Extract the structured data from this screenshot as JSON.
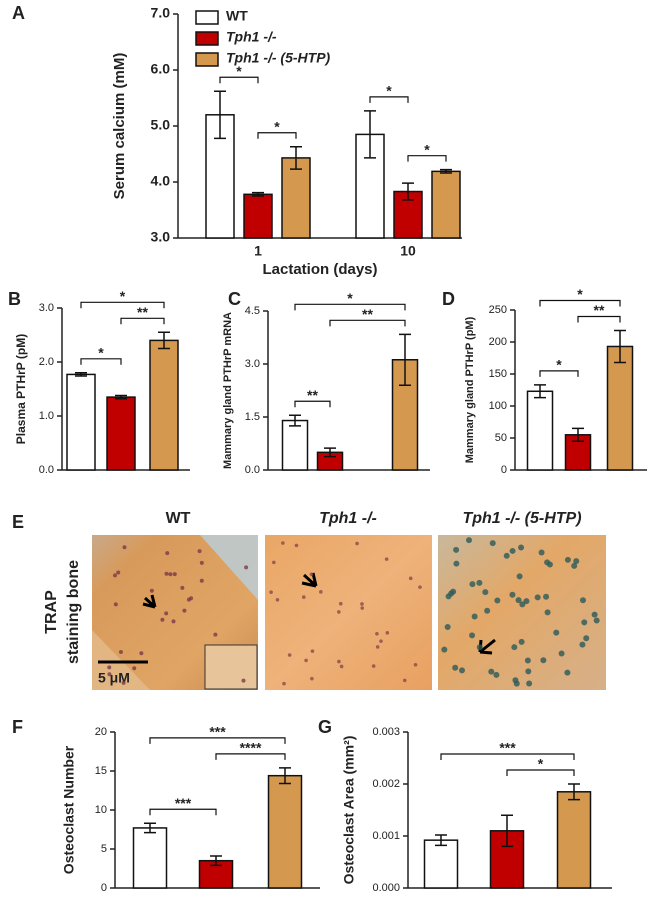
{
  "chart_data": [
    {
      "type": "bar",
      "panel": "A",
      "ylabel": "Serum calcium (mM)",
      "xlabel": "Lactation (days)",
      "categories": [
        "1",
        "10"
      ],
      "series": [
        {
          "name": "WT",
          "color": "#ffffff",
          "values": [
            5.2,
            4.85
          ],
          "errors": [
            0.42,
            0.42
          ]
        },
        {
          "name": "Tph1 -/-",
          "color": "#c00000",
          "values": [
            3.78,
            3.83
          ],
          "errors": [
            0.03,
            0.15
          ]
        },
        {
          "name": "Tph1 -/- (5-HTP)",
          "color": "#d4994f",
          "values": [
            4.43,
            4.19
          ],
          "errors": [
            0.2,
            0.03
          ]
        }
      ],
      "ylim": [
        3,
        7
      ],
      "yticks": [
        {
          "value": 3,
          "label": "3.0"
        },
        {
          "value": 4,
          "label": "4.0"
        },
        {
          "value": 5,
          "label": "5.0"
        },
        {
          "value": 6,
          "label": "6.0"
        },
        {
          "value": 7,
          "label": "7.0"
        }
      ],
      "annotations": [
        {
          "label": "*",
          "category": 0,
          "between": [
            0,
            1
          ]
        },
        {
          "label": "*",
          "category": 0,
          "between": [
            1,
            2
          ]
        },
        {
          "label": "*",
          "category": 1,
          "between": [
            0,
            1
          ]
        },
        {
          "label": "*",
          "category": 1,
          "between": [
            1,
            2
          ]
        }
      ]
    },
    {
      "type": "bar",
      "panel": "B",
      "ylabel": "Plasma PTHrP (pM)",
      "values": [
        1.77,
        1.35,
        2.4
      ],
      "errors": [
        0.03,
        0.03,
        0.15
      ],
      "colors": [
        "#ffffff",
        "#c00000",
        "#d4994f"
      ],
      "ylim": [
        0,
        3
      ],
      "yticks": [
        {
          "value": 0,
          "label": "0.0"
        },
        {
          "value": 1,
          "label": "1.0"
        },
        {
          "value": 2,
          "label": "2.0"
        },
        {
          "value": 3,
          "label": "3.0"
        }
      ],
      "annotations": [
        {
          "label": "*",
          "between": [
            0,
            1
          ]
        },
        {
          "label": "**",
          "between": [
            1,
            2
          ]
        },
        {
          "label": "*",
          "between": [
            0,
            2
          ]
        }
      ]
    },
    {
      "type": "bar",
      "panel": "C",
      "ylabel": "Mammary gland PTHrP mRNA",
      "values": [
        1.4,
        0.5,
        3.12
      ],
      "errors": [
        0.15,
        0.12,
        0.72
      ],
      "colors": [
        "#ffffff",
        "#c00000",
        "#d4994f"
      ],
      "ylim": [
        0,
        4.5
      ],
      "yticks": [
        {
          "value": 0,
          "label": "0.0"
        },
        1.5,
        {
          "value": 3,
          "label": "3.0"
        },
        4.5
      ],
      "annotations": [
        {
          "label": "**",
          "between": [
            0,
            1
          ]
        },
        {
          "label": "**",
          "between": [
            1,
            2
          ]
        },
        {
          "label": "*",
          "between": [
            0,
            2
          ]
        }
      ]
    },
    {
      "type": "bar",
      "panel": "D",
      "ylabel": "Mammary gland PTHrP (pM)",
      "values": [
        123,
        55,
        193
      ],
      "errors": [
        10,
        10,
        25
      ],
      "colors": [
        "#ffffff",
        "#c00000",
        "#d4994f"
      ],
      "ylim": [
        0,
        250
      ],
      "yticks": [
        0,
        50,
        100,
        150,
        200,
        250
      ],
      "annotations": [
        {
          "label": "*",
          "between": [
            0,
            1
          ]
        },
        {
          "label": "**",
          "between": [
            1,
            2
          ]
        },
        {
          "label": "*",
          "between": [
            0,
            2
          ]
        }
      ]
    },
    {
      "type": "bar",
      "panel": "F",
      "ylabel": "Osteoclast Number",
      "values": [
        7.7,
        3.5,
        14.4
      ],
      "errors": [
        0.6,
        0.6,
        1.0
      ],
      "colors": [
        "#ffffff",
        "#c00000",
        "#d4994f"
      ],
      "ylim": [
        0,
        20
      ],
      "yticks": [
        0,
        5,
        10,
        15,
        20
      ],
      "annotations": [
        {
          "label": "***",
          "between": [
            0,
            1
          ]
        },
        {
          "label": "****",
          "between": [
            1,
            2
          ]
        },
        {
          "label": "***",
          "between": [
            0,
            2
          ]
        }
      ]
    },
    {
      "type": "bar",
      "panel": "G",
      "ylabel": "Osteoclast Area (mm²)",
      "values": [
        0.00092,
        0.0011,
        0.00185
      ],
      "errors": [
        0.0001,
        0.0003,
        0.00015
      ],
      "colors": [
        "#ffffff",
        "#c00000",
        "#d4994f"
      ],
      "ylim": [
        0,
        0.003
      ],
      "yticks": [
        {
          "value": 0,
          "label": "0.000"
        },
        {
          "value": 0.001,
          "label": "0.001"
        },
        {
          "value": 0.002,
          "label": "0.002"
        },
        {
          "value": 0.003,
          "label": "0.003"
        }
      ],
      "annotations": [
        {
          "label": "*",
          "between": [
            1,
            2
          ]
        },
        {
          "label": "***",
          "between": [
            0,
            2
          ]
        }
      ]
    }
  ],
  "figure_e": {
    "panel": "E",
    "side_label": [
      "TRAP",
      "staining bone"
    ],
    "titles": [
      "WT",
      "Tph1 -/-",
      "Tph1 -/- (5-HTP)"
    ],
    "scale_bar": "5 μM"
  }
}
